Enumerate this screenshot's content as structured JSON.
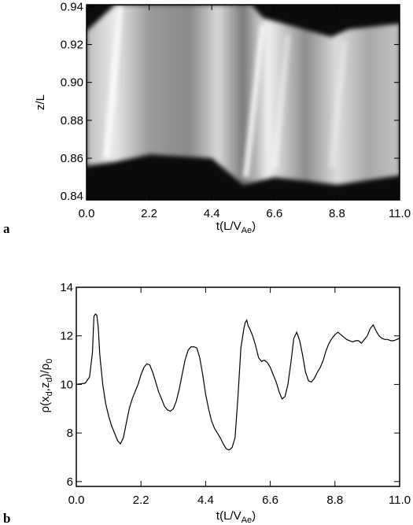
{
  "chart_data": [
    {
      "panel": "a",
      "type": "heatmap",
      "xlabel": "t(L/V",
      "xlabel_sub": "Ae",
      "xlabel_suffix": ")",
      "ylabel": "z/L",
      "xlim": [
        0.0,
        11.0
      ],
      "ylim": [
        0.838,
        0.941
      ],
      "xticks": [
        "0.0",
        "2.2",
        "4.4",
        "6.6",
        "8.8",
        "11.0"
      ],
      "yticks": [
        "0.84",
        "0.86",
        "0.88",
        "0.90",
        "0.92",
        "0.94"
      ],
      "colormap": "grayscale",
      "grid": false,
      "description_values": {
        "upper_boundary_z": [
          [
            0.0,
            0.927
          ],
          [
            1.0,
            0.941
          ],
          [
            5.8,
            0.941
          ],
          [
            6.2,
            0.934
          ],
          [
            8.6,
            0.924
          ],
          [
            9.2,
            0.928
          ],
          [
            11.0,
            0.931
          ]
        ],
        "lower_boundary_z": [
          [
            0.0,
            0.856
          ],
          [
            1.0,
            0.858
          ],
          [
            2.2,
            0.862
          ],
          [
            4.4,
            0.86
          ],
          [
            5.5,
            0.846
          ],
          [
            6.6,
            0.85
          ],
          [
            8.8,
            0.846
          ],
          [
            11.0,
            0.851
          ]
        ]
      }
    },
    {
      "panel": "b",
      "type": "line",
      "xlabel": "t(L/V",
      "xlabel_sub": "Ae",
      "xlabel_suffix": ")",
      "ylabel": "ρ(x",
      "ylabel_parts": [
        "ρ(x",
        "d",
        ",z",
        "d",
        ")/ρ",
        "0"
      ],
      "xlim": [
        0.0,
        11.0
      ],
      "ylim": [
        5.8,
        14.0
      ],
      "xticks": [
        "0.0",
        "2.2",
        "4.4",
        "6.6",
        "8.8",
        "11.0"
      ],
      "yticks": [
        "6",
        "8",
        "10",
        "12",
        "14"
      ],
      "grid": false,
      "series": [
        {
          "x": [
            0.0,
            0.3,
            0.45,
            0.55,
            0.6,
            0.65,
            0.7,
            0.75,
            0.8,
            0.9,
            1.0,
            1.1,
            1.2,
            1.3,
            1.4,
            1.5,
            1.6,
            1.7,
            1.8,
            1.9,
            2.0,
            2.1,
            2.2,
            2.3,
            2.4,
            2.5,
            2.6,
            2.7,
            2.8,
            2.9,
            3.0,
            3.1,
            3.2,
            3.3,
            3.4,
            3.5,
            3.6,
            3.7,
            3.8,
            3.9,
            4.0,
            4.1,
            4.2,
            4.3,
            4.4,
            4.5,
            4.6,
            4.7,
            4.8,
            4.9,
            5.0,
            5.1,
            5.2,
            5.3,
            5.4,
            5.5,
            5.6,
            5.7,
            5.75,
            5.8,
            5.85,
            5.9,
            6.0,
            6.1,
            6.2,
            6.3,
            6.4,
            6.5,
            6.6,
            6.7,
            6.8,
            6.9,
            7.0,
            7.1,
            7.2,
            7.3,
            7.4,
            7.5,
            7.6,
            7.7,
            7.8,
            7.9,
            8.0,
            8.1,
            8.2,
            8.3,
            8.4,
            8.5,
            8.6,
            8.7,
            8.8,
            8.9,
            9.0,
            9.1,
            9.2,
            9.3,
            9.4,
            9.5,
            9.6,
            9.7,
            9.8,
            9.9,
            10.0,
            10.1,
            10.2,
            10.3,
            10.4,
            10.5,
            10.6,
            10.7,
            10.8,
            10.9,
            11.0
          ],
          "y": [
            10.0,
            10.05,
            10.3,
            11.3,
            12.8,
            12.9,
            12.85,
            12.3,
            11.2,
            10.0,
            9.2,
            8.7,
            8.3,
            8.0,
            7.7,
            7.55,
            7.8,
            8.4,
            9.0,
            9.4,
            9.7,
            10.0,
            10.4,
            10.7,
            10.85,
            10.8,
            10.5,
            10.1,
            9.7,
            9.4,
            9.1,
            8.95,
            8.9,
            9.0,
            9.3,
            9.8,
            10.4,
            11.0,
            11.4,
            11.55,
            11.55,
            11.5,
            11.1,
            10.4,
            9.6,
            9.0,
            8.5,
            8.2,
            8.0,
            7.8,
            7.55,
            7.35,
            7.3,
            7.4,
            7.8,
            9.5,
            11.5,
            12.3,
            12.55,
            12.65,
            12.4,
            12.3,
            12.0,
            11.6,
            11.1,
            10.95,
            11.0,
            10.9,
            10.7,
            10.4,
            10.1,
            9.7,
            9.4,
            9.5,
            10.0,
            10.9,
            11.9,
            12.15,
            11.8,
            11.2,
            10.5,
            10.15,
            10.1,
            10.25,
            10.5,
            10.7,
            11.0,
            11.4,
            11.7,
            11.9,
            12.05,
            12.15,
            12.05,
            11.95,
            11.85,
            11.8,
            11.75,
            11.8,
            11.8,
            11.7,
            11.85,
            12.0,
            12.3,
            12.45,
            12.2,
            12.0,
            11.9,
            11.85,
            11.85,
            11.8,
            11.8,
            11.85,
            11.9
          ]
        }
      ]
    }
  ],
  "panel_letters": [
    "a",
    "b"
  ]
}
